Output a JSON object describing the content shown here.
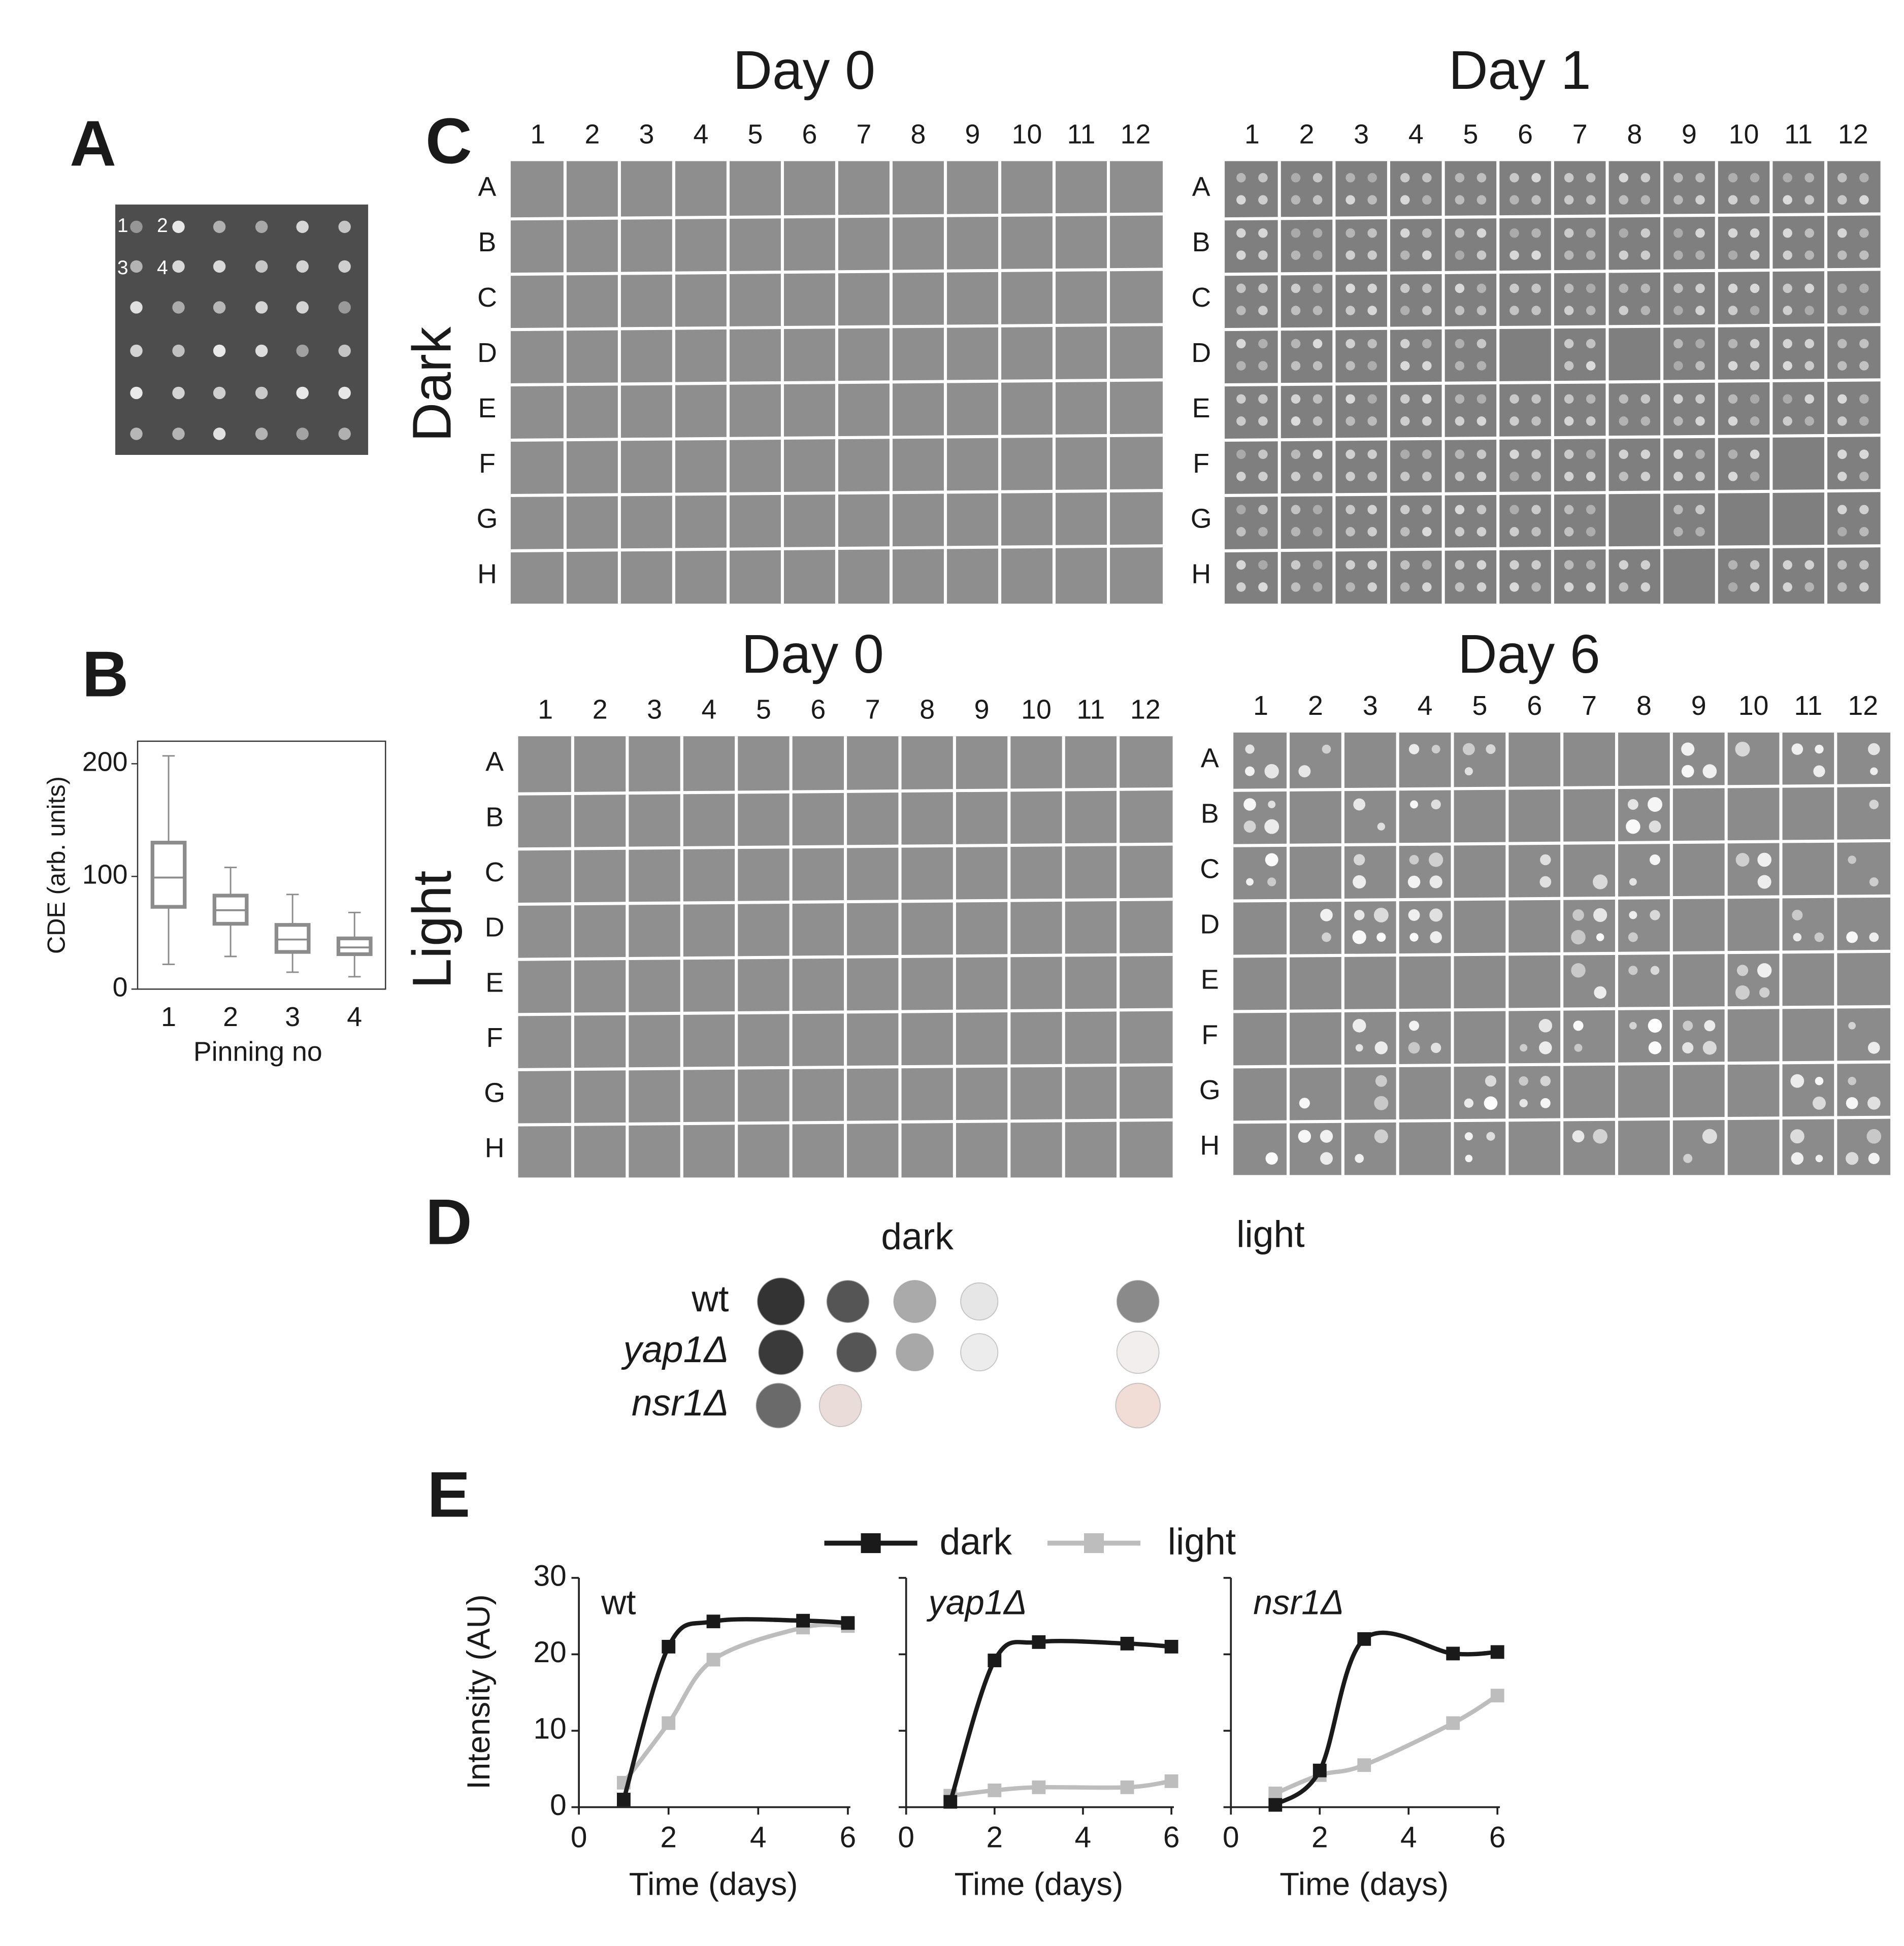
{
  "panel_labels": [
    "A",
    "B",
    "C",
    "D",
    "E"
  ],
  "panel_a": {
    "spot_labels": [
      "1",
      "2",
      "3",
      "4"
    ]
  },
  "panel_c": {
    "plates": [
      {
        "title": "Day 0"
      },
      {
        "title": "Day 1"
      },
      {
        "title": "Day 0"
      },
      {
        "title": "Day 6"
      }
    ],
    "conditions": [
      "Dark",
      "Light"
    ],
    "columns": [
      "1",
      "2",
      "3",
      "4",
      "5",
      "6",
      "7",
      "8",
      "9",
      "10",
      "11",
      "12"
    ],
    "rows": [
      "A",
      "B",
      "C",
      "D",
      "E",
      "F",
      "G",
      "H"
    ]
  },
  "panel_d": {
    "conditions": [
      "dark",
      "light"
    ],
    "strains": [
      "wt",
      "yap1Δ",
      "nsr1Δ"
    ]
  },
  "chart_data": [
    {
      "type": "box",
      "ylabel": "CDE (arb. units)",
      "xlabel": "Pinning no",
      "categories": [
        "1",
        "2",
        "3",
        "4"
      ],
      "min": [
        22,
        29,
        15,
        11
      ],
      "q1": [
        73,
        58,
        33,
        31
      ],
      "median": [
        99,
        70,
        44,
        37
      ],
      "q3": [
        130,
        83,
        57,
        45
      ],
      "max": [
        207,
        108,
        84,
        68
      ],
      "color": "#8c8c8c",
      "ylim": [
        0,
        220
      ],
      "yticks": [
        0,
        100,
        200
      ]
    },
    {
      "type": "line",
      "title": "wt",
      "xlabel": "Time (days)",
      "ylabel": "Intensity (AU)",
      "legend": "top",
      "ytick_labels": true,
      "x": [
        1,
        2,
        3,
        5,
        6
      ],
      "xlim": [
        0,
        6
      ],
      "xticks": [
        0,
        2,
        4,
        6
      ],
      "ylim": [
        0,
        30
      ],
      "yticks": [
        0,
        10,
        20,
        30
      ],
      "series": [
        {
          "name": "dark",
          "color": "#1a1a1a",
          "values": [
            1,
            21,
            24.3,
            24.4,
            24.1
          ]
        },
        {
          "name": "light",
          "color": "#bdbdbd",
          "values": [
            3.2,
            11,
            19.3,
            23.5,
            23.7
          ]
        }
      ]
    },
    {
      "type": "line",
      "title": "yap1Δ",
      "xlabel": "Time (days)",
      "ytick_labels": false,
      "x": [
        1,
        2,
        3,
        5,
        6
      ],
      "xlim": [
        0,
        6
      ],
      "xticks": [
        0,
        2,
        4,
        6
      ],
      "ylim": [
        0,
        30
      ],
      "yticks": [
        0,
        10,
        20,
        30
      ],
      "series": [
        {
          "name": "dark",
          "color": "#1a1a1a",
          "values": [
            0.7,
            19.2,
            21.6,
            21.4,
            21
          ]
        },
        {
          "name": "light",
          "color": "#bdbdbd",
          "values": [
            1.5,
            2.2,
            2.6,
            2.6,
            3.4
          ]
        }
      ]
    },
    {
      "type": "line",
      "title": "nsr1Δ",
      "xlabel": "Time (days)",
      "ytick_labels": false,
      "x": [
        1,
        2,
        3,
        5,
        6
      ],
      "xlim": [
        0,
        6
      ],
      "xticks": [
        0,
        2,
        4,
        6
      ],
      "ylim": [
        0,
        30
      ],
      "yticks": [
        0,
        10,
        20,
        30
      ],
      "series": [
        {
          "name": "dark",
          "color": "#1a1a1a",
          "values": [
            0.3,
            4.8,
            22,
            20.1,
            20.3
          ]
        },
        {
          "name": "light",
          "color": "#bdbdbd",
          "values": [
            1.8,
            4.2,
            5.5,
            11,
            14.6
          ]
        }
      ]
    }
  ]
}
